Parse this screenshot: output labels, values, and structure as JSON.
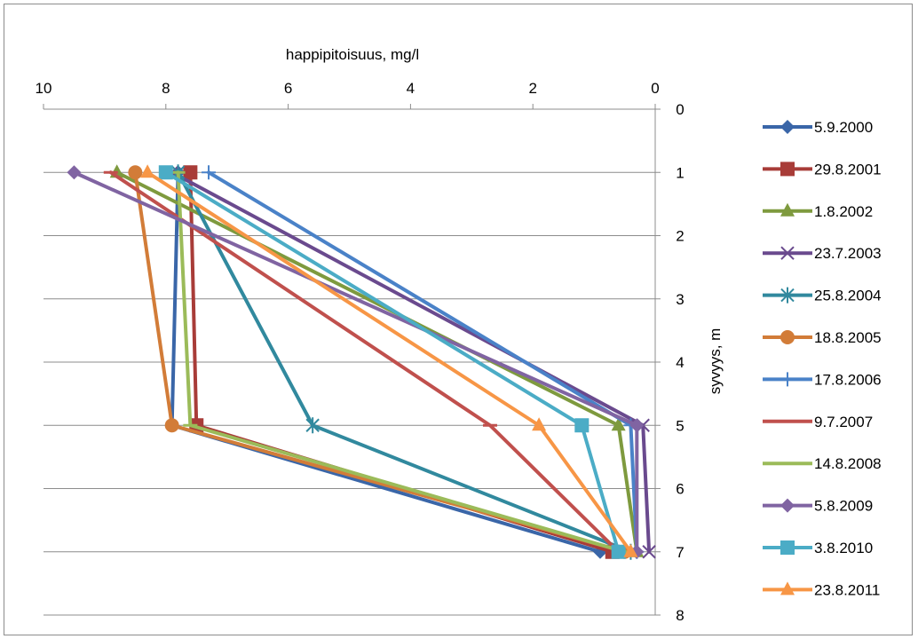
{
  "chart_data": {
    "type": "line",
    "title": "",
    "xlabel": "happipitoisuus, mg/l",
    "ylabel": "syvyys, m",
    "xlim": [
      0,
      10
    ],
    "x_reversed": true,
    "x_axis_position": "top",
    "ylim": [
      0,
      8
    ],
    "y_reversed": true,
    "y_axis_position": "right",
    "x_ticks": [
      "10",
      "8",
      "6",
      "4",
      "2",
      "0"
    ],
    "y_ticks": [
      "0",
      "1",
      "2",
      "3",
      "4",
      "5",
      "6",
      "7",
      "8"
    ],
    "grid": "horizontal",
    "legend_position": "right",
    "series": [
      {
        "name": "5.9.2000",
        "color": "#3a66a8",
        "marker": "diamond",
        "points": [
          {
            "x": 7.8,
            "y": 1
          },
          {
            "x": 7.9,
            "y": 5
          },
          {
            "x": 0.9,
            "y": 7
          }
        ]
      },
      {
        "name": "29.8.2001",
        "color": "#a83c38",
        "marker": "square",
        "points": [
          {
            "x": 7.6,
            "y": 1
          },
          {
            "x": 7.5,
            "y": 5
          },
          {
            "x": 0.7,
            "y": 7
          }
        ]
      },
      {
        "name": "1.8.2002",
        "color": "#7e9a3e",
        "marker": "triangle",
        "points": [
          {
            "x": 8.8,
            "y": 1
          },
          {
            "x": 0.6,
            "y": 5
          },
          {
            "x": 0.3,
            "y": 7
          }
        ]
      },
      {
        "name": "23.7.2003",
        "color": "#6a4a8e",
        "marker": "x",
        "points": [
          {
            "x": 7.9,
            "y": 1
          },
          {
            "x": 0.2,
            "y": 5
          },
          {
            "x": 0.1,
            "y": 7
          }
        ]
      },
      {
        "name": "25.8.2004",
        "color": "#31899e",
        "marker": "star",
        "points": [
          {
            "x": 7.8,
            "y": 1
          },
          {
            "x": 5.6,
            "y": 5
          },
          {
            "x": 0.4,
            "y": 7
          }
        ]
      },
      {
        "name": "18.8.2005",
        "color": "#d27c38",
        "marker": "circle",
        "points": [
          {
            "x": 8.5,
            "y": 1
          },
          {
            "x": 7.9,
            "y": 5
          },
          {
            "x": 0.5,
            "y": 7
          }
        ]
      },
      {
        "name": "17.8.2006",
        "color": "#4a82c8",
        "marker": "plus",
        "points": [
          {
            "x": 7.3,
            "y": 1
          },
          {
            "x": 0.4,
            "y": 5
          },
          {
            "x": 0.3,
            "y": 7
          }
        ]
      },
      {
        "name": "9.7.2007",
        "color": "#c0504d",
        "marker": "dash",
        "points": [
          {
            "x": 8.9,
            "y": 1
          },
          {
            "x": 2.7,
            "y": 5
          },
          {
            "x": 0.6,
            "y": 7
          }
        ]
      },
      {
        "name": "14.8.2008",
        "color": "#9bbb59",
        "marker": "dash",
        "points": [
          {
            "x": 7.8,
            "y": 1
          },
          {
            "x": 7.6,
            "y": 5
          },
          {
            "x": 0.5,
            "y": 7
          }
        ]
      },
      {
        "name": "5.8.2009",
        "color": "#8064a2",
        "marker": "diamond",
        "points": [
          {
            "x": 9.5,
            "y": 1
          },
          {
            "x": 0.3,
            "y": 5
          },
          {
            "x": 0.3,
            "y": 7
          }
        ]
      },
      {
        "name": "3.8.2010",
        "color": "#4bacc6",
        "marker": "square",
        "points": [
          {
            "x": 8.0,
            "y": 1
          },
          {
            "x": 1.2,
            "y": 5
          },
          {
            "x": 0.6,
            "y": 7
          }
        ]
      },
      {
        "name": "23.8.2011",
        "color": "#f79646",
        "marker": "triangle",
        "points": [
          {
            "x": 8.3,
            "y": 1
          },
          {
            "x": 1.9,
            "y": 5
          },
          {
            "x": 0.4,
            "y": 7
          }
        ]
      }
    ]
  }
}
